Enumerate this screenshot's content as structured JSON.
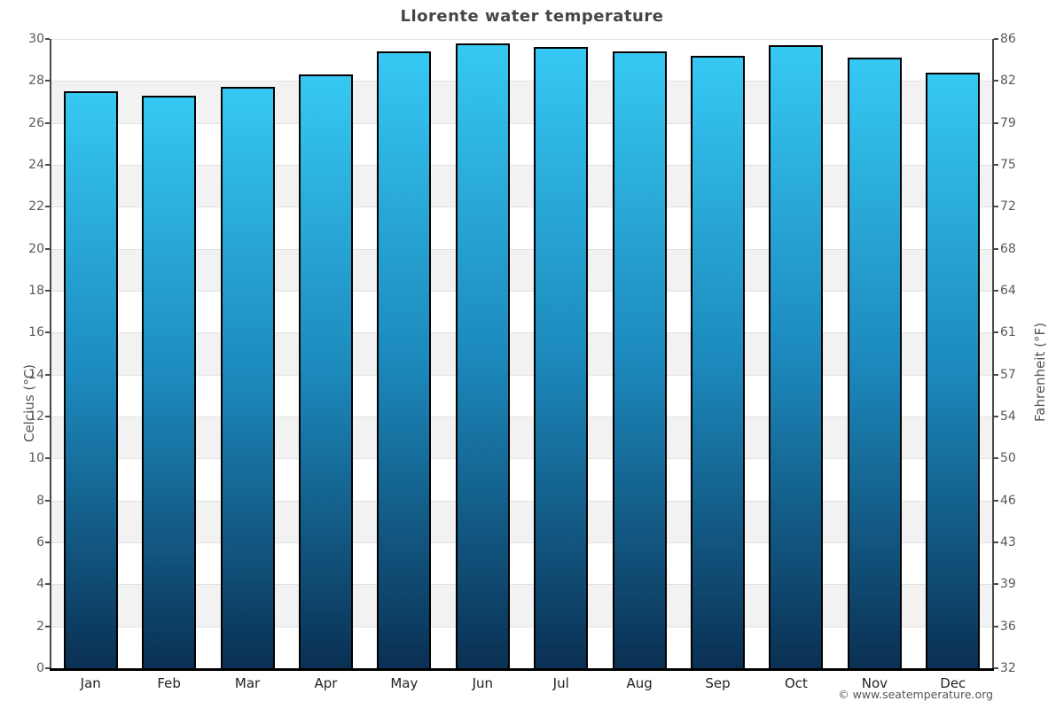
{
  "title": "Llorente water temperature",
  "footer": "© www.seatemperature.org",
  "chart_data": {
    "type": "bar",
    "title": "Llorente water temperature",
    "categories": [
      "Jan",
      "Feb",
      "Mar",
      "Apr",
      "May",
      "Jun",
      "Jul",
      "Aug",
      "Sep",
      "Oct",
      "Nov",
      "Dec"
    ],
    "values": [
      27.5,
      27.3,
      27.7,
      28.3,
      29.4,
      29.8,
      29.6,
      29.4,
      29.2,
      29.7,
      29.1,
      28.4
    ],
    "unit": "°C",
    "ylim": [
      0,
      30
    ],
    "grid": "horizontal-bands",
    "legend": "none",
    "y_axis_left": {
      "label": "Celcius (°C)",
      "ticks_top_to_bottom": [
        30,
        28,
        26,
        24,
        22,
        20,
        18,
        16,
        14,
        12,
        10,
        8,
        6,
        4,
        2,
        0
      ]
    },
    "y_axis_right": {
      "label": "Fahrenheit (°F)",
      "ticks_top_to_bottom": [
        86,
        82,
        79,
        75,
        72,
        68,
        64,
        61,
        57,
        54,
        50,
        46,
        43,
        39,
        36,
        32
      ]
    },
    "colors": {
      "bar_gradient_top": "#36c8f3",
      "bar_gradient_mid": "#1c89bc",
      "bar_gradient_bottom": "#0a3053",
      "bar_border": "#000000",
      "band_shade": "#f2f2f2",
      "gridline": "#e2e2e2",
      "axis": "#4a4a4a",
      "baseline": "#000000",
      "title_text": "#454545",
      "tick_text": "#595959",
      "month_text": "#1f1f1f",
      "footer_text": "#555555"
    }
  }
}
